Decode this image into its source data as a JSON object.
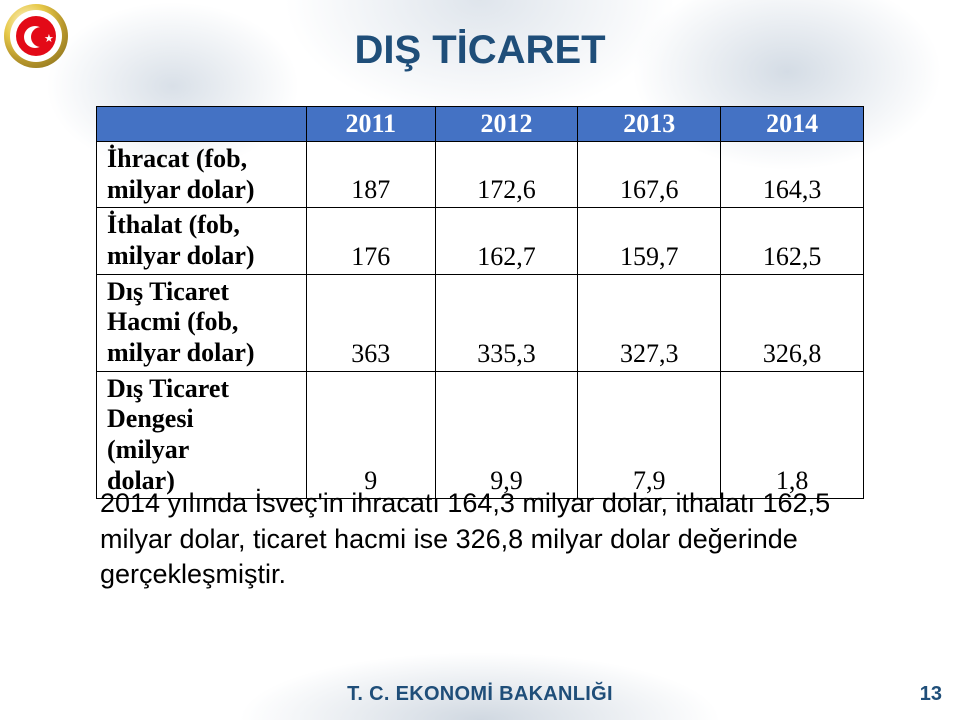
{
  "title": {
    "text": "DIŞ TİCARET",
    "color": "#1f4e79",
    "fontsize": 40
  },
  "table": {
    "header_bg": "#4472c4",
    "header_text_color": "#ffffff",
    "years": [
      "2011",
      "2012",
      "2013",
      "2014"
    ],
    "rows": [
      {
        "label": "İhracat (fob,\nmilyar dolar)",
        "values": [
          "187",
          "172,6",
          "167,6",
          "164,3"
        ]
      },
      {
        "label": "İthalat (fob,\nmilyar dolar)",
        "values": [
          "176",
          "162,7",
          "159,7",
          "162,5"
        ]
      },
      {
        "label": "Dış Ticaret\nHacmi (fob,\nmilyar dolar)",
        "values": [
          "363",
          "335,3",
          "327,3",
          "326,8"
        ]
      },
      {
        "label": "Dış Ticaret\nDengesi\n(milyar\ndolar)",
        "values": [
          "9",
          "9,9",
          "7,9",
          "1,8"
        ]
      }
    ]
  },
  "description": "2014 yılında  İsveç'in ihracatı 164,3 milyar dolar, ithalatı 162,5 milyar dolar, ticaret hacmi ise 326,8 milyar dolar değerinde gerçekleşmiştir.",
  "footer": {
    "text": "T. C. EKONOMİ BAKANLIĞI",
    "color": "#1f4e79"
  },
  "page_number": {
    "text": "13",
    "color": "#1f4e79"
  }
}
